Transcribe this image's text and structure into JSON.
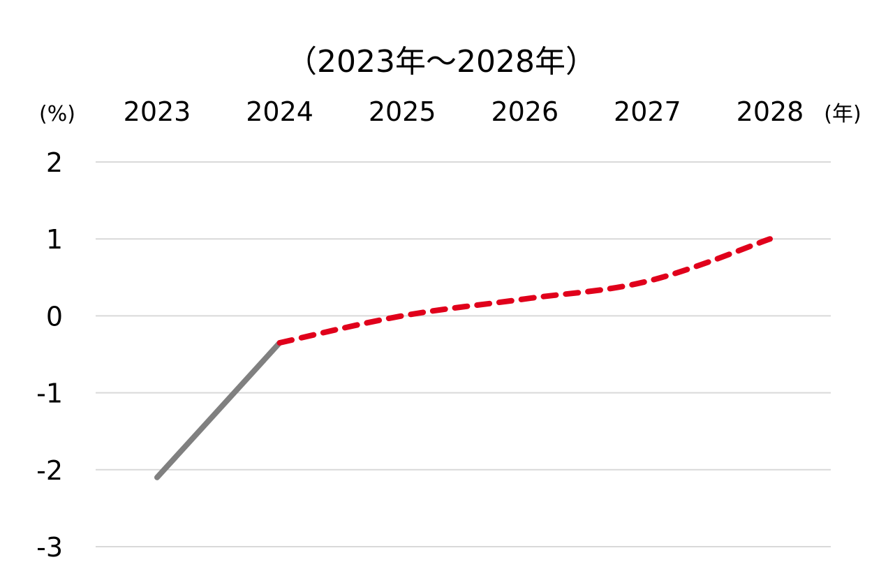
{
  "chart_data": {
    "type": "line",
    "title": "（2023年～2028年）",
    "ylabel": "(%)",
    "xlabel": "(年)",
    "categories": [
      "2023",
      "2024",
      "2025",
      "2026",
      "2027",
      "2028"
    ],
    "yticks": [
      "2",
      "1",
      "0",
      "-1",
      "-2",
      "-3"
    ],
    "ylim": [
      -3,
      2
    ],
    "grid": true,
    "series": [
      {
        "style": "solid",
        "color": "#808080",
        "x": [
          "2023",
          "2024"
        ],
        "values": [
          -2.1,
          -0.35
        ]
      },
      {
        "style": "dashed",
        "color": "#e0001b",
        "x": [
          "2024",
          "2025",
          "2026",
          "2027",
          "2028"
        ],
        "values": [
          -0.35,
          0.0,
          0.22,
          0.45,
          1.0
        ]
      }
    ]
  }
}
